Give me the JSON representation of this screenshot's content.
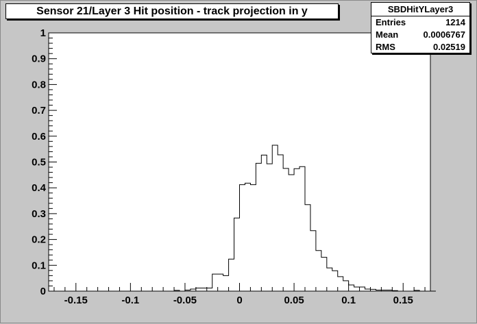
{
  "title": "Sensor 21/Layer 3 Hit position - track projection in y",
  "stats": {
    "name": "SBDHitYLayer3",
    "rows": [
      {
        "key": "Entries",
        "value": "1214"
      },
      {
        "key": "Mean",
        "value": "0.0006767"
      },
      {
        "key": "RMS",
        "value": "0.02519"
      }
    ]
  },
  "chart_data": {
    "type": "bar",
    "style": "step-histogram",
    "xlim": [
      -0.175,
      0.175
    ],
    "ylim": [
      0,
      1
    ],
    "grid": false,
    "bin_width": 0.005,
    "bin_start": -0.175,
    "values": [
      0,
      0,
      0,
      0,
      0,
      0,
      0,
      0,
      0,
      0,
      0,
      0,
      0,
      0,
      0,
      0,
      0,
      0,
      0,
      0,
      0,
      0,
      0,
      0.003,
      0,
      0.004,
      0.008,
      0.012,
      0.012,
      0.012,
      0.066,
      0.066,
      0.06,
      0.124,
      0.283,
      0.412,
      0.418,
      0.412,
      0.495,
      0.527,
      0.493,
      0.565,
      0.528,
      0.475,
      0.451,
      0.474,
      0.482,
      0.335,
      0.234,
      0.157,
      0.131,
      0.09,
      0.079,
      0.056,
      0.04,
      0.024,
      0.016,
      0.016,
      0.008,
      0.007,
      0.004,
      0.004,
      0.004,
      0.002,
      0,
      0,
      0,
      0.003,
      0,
      0,
      0
    ],
    "x_ticks": [
      "-0.15",
      "-0.1",
      "-0.05",
      "0",
      "0.05",
      "0.1",
      "0.15"
    ],
    "x_tick_values": [
      -0.15,
      -0.1,
      -0.05,
      0,
      0.05,
      0.1,
      0.15
    ],
    "y_ticks": [
      "0",
      "0.1",
      "0.2",
      "0.3",
      "0.4",
      "0.5",
      "0.6",
      "0.7",
      "0.8",
      "0.9",
      "1"
    ],
    "y_tick_values": [
      0,
      0.1,
      0.2,
      0.3,
      0.4,
      0.5,
      0.6,
      0.7,
      0.8,
      0.9,
      1
    ],
    "colors": {
      "frame_bg": "#ffffff",
      "pad_bg": "#c6c6c6",
      "line": "#000000"
    }
  }
}
